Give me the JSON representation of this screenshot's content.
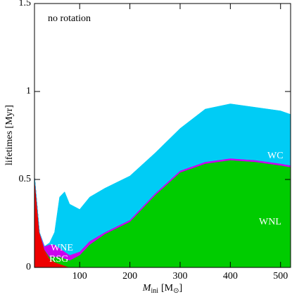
{
  "chart_data": {
    "type": "stacked_area",
    "annotation": "no rotation",
    "ylabel": "lifetimes [Myr]",
    "xlabel": [
      "M",
      "ini",
      "[M",
      "⊙",
      "]"
    ],
    "x": [
      10,
      20,
      30,
      40,
      50,
      60,
      70,
      80,
      100,
      120,
      150,
      200,
      250,
      300,
      350,
      400,
      450,
      500,
      520
    ],
    "series": [
      {
        "name": "RSG",
        "color": "#ee0000",
        "values": [
          0.52,
          0.2,
          0.1,
          0.05,
          0.03,
          0.02,
          0.01,
          0,
          0,
          0,
          0,
          0,
          0,
          0,
          0,
          0,
          0,
          0,
          0
        ]
      },
      {
        "name": "WNL",
        "color": "#00cc00",
        "values": [
          0,
          0,
          0,
          0.01,
          0.03,
          0.04,
          0.04,
          0.04,
          0.07,
          0.13,
          0.19,
          0.26,
          0.41,
          0.54,
          0.59,
          0.61,
          0.6,
          0.58,
          0.57
        ]
      },
      {
        "name": "WNE",
        "color": "#cc00ee",
        "values": [
          0,
          0,
          0.02,
          0.07,
          0.07,
          0.05,
          0.04,
          0.03,
          0.02,
          0.02,
          0.01,
          0.01,
          0.01,
          0.01,
          0.01,
          0.01,
          0.01,
          0.01,
          0.01
        ]
      },
      {
        "name": "WC",
        "color": "#00ccf5",
        "values": [
          0,
          0,
          0,
          0.01,
          0.07,
          0.29,
          0.34,
          0.29,
          0.24,
          0.25,
          0.25,
          0.25,
          0.23,
          0.24,
          0.3,
          0.31,
          0.3,
          0.3,
          0.29
        ]
      }
    ],
    "xlim": [
      10,
      520
    ],
    "ylim": [
      0,
      1.5
    ],
    "xticks": [
      100,
      200,
      300,
      400,
      500
    ],
    "yticks": [
      0,
      0.5,
      1,
      1.5
    ]
  }
}
